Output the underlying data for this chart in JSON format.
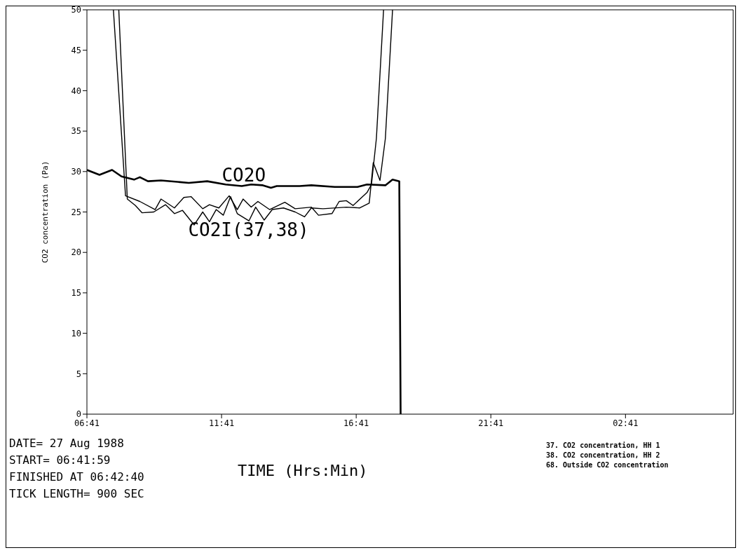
{
  "chart_data": {
    "type": "line",
    "xlabel": "TIME (Hrs:Min)",
    "ylabel": "CO2 concentration (Pa)",
    "xlim": [
      "1988-08-27T06:41",
      "1988-08-28T06:41"
    ],
    "xticks": [
      {
        "value": "1988-08-27T06:41",
        "label": "06:41"
      },
      {
        "value": "1988-08-27T11:41",
        "label": "11:41"
      },
      {
        "value": "1988-08-27T16:41",
        "label": "16:41"
      },
      {
        "value": "1988-08-27T21:41",
        "label": "21:41"
      },
      {
        "value": "1988-08-28T02:41",
        "label": "02:41"
      }
    ],
    "ylim": [
      0,
      50
    ],
    "yticks": [
      0,
      5,
      10,
      15,
      20,
      25,
      30,
      35,
      40,
      45,
      50
    ],
    "grid": false,
    "legend": false,
    "marker": "none",
    "line_style": "solid",
    "series": [
      {
        "name": "CO2O",
        "color": "#000000",
        "x": [
          "1988-08-27T06:41",
          "1988-08-27T07:09",
          "1988-08-27T07:37",
          "1988-08-27T07:58",
          "1988-08-27T08:26",
          "1988-08-27T08:39",
          "1988-08-27T08:57",
          "1988-08-27T09:26",
          "1988-08-27T10:28",
          "1988-08-27T11:09",
          "1988-08-27T11:50",
          "1988-08-27T12:26",
          "1988-08-27T12:47",
          "1988-08-27T13:13",
          "1988-08-27T13:31",
          "1988-08-27T13:44",
          "1988-08-27T14:35",
          "1988-08-27T15:01",
          "1988-08-27T15:53",
          "1988-08-27T16:44",
          "1988-08-27T17:05",
          "1988-08-27T17:46",
          "1988-08-27T18:02",
          "1988-08-27T18:17",
          "1988-08-27T18:20"
        ],
        "values": [
          30.2,
          29.6,
          30.2,
          29.4,
          29.0,
          29.3,
          28.8,
          28.9,
          28.6,
          28.8,
          28.4,
          28.2,
          28.4,
          28.3,
          28.0,
          28.2,
          28.2,
          28.3,
          28.1,
          28.1,
          28.4,
          28.3,
          29.0,
          28.8,
          0
        ]
      },
      {
        "name": "CO2I(37,38)",
        "color": "#000000",
        "x": [
          "1988-08-27T07:40",
          "1988-08-27T08:07",
          "1988-08-27T08:39",
          "1988-08-27T09:13",
          "1988-08-27T09:26",
          "1988-08-27T09:56",
          "1988-08-27T10:17",
          "1988-08-27T10:33",
          "1988-08-27T10:59",
          "1988-08-27T11:14",
          "1988-08-27T11:35",
          "1988-08-27T11:58",
          "1988-08-27T12:16",
          "1988-08-27T12:29",
          "1988-08-27T12:47",
          "1988-08-27T13:02",
          "1988-08-27T13:28",
          "1988-08-27T14:02",
          "1988-08-27T14:25",
          "1988-08-27T15:01",
          "1988-08-27T15:17",
          "1988-08-27T15:47",
          "1988-08-27T16:03",
          "1988-08-27T16:19",
          "1988-08-27T16:34",
          "1988-08-27T17:05",
          "1988-08-27T17:15",
          "1988-08-27T17:26",
          "1988-08-27T17:42"
        ],
        "values": [
          50,
          27.0,
          26.3,
          25.3,
          26.6,
          25.5,
          26.8,
          26.9,
          25.4,
          25.9,
          25.5,
          27.0,
          25.3,
          26.6,
          25.6,
          26.3,
          25.3,
          26.2,
          25.4,
          25.6,
          24.6,
          24.8,
          26.3,
          26.4,
          25.8,
          27.4,
          28.4,
          34.1,
          50
        ]
      },
      {
        "color": "#000000",
        "x": [
          "1988-08-27T07:52",
          "1988-08-27T08:11",
          "1988-08-27T08:29",
          "1988-08-27T08:44",
          "1988-08-27T09:10",
          "1988-08-27T09:36",
          "1988-08-27T09:56",
          "1988-08-27T10:14",
          "1988-08-27T10:40",
          "1988-08-27T10:59",
          "1988-08-27T11:14",
          "1988-08-27T11:29",
          "1988-08-27T11:45",
          "1988-08-27T12:01",
          "1988-08-27T12:16",
          "1988-08-27T12:42",
          "1988-08-27T12:57",
          "1988-08-27T13:16",
          "1988-08-27T13:34",
          "1988-08-27T13:59",
          "1988-08-27T14:25",
          "1988-08-27T14:46",
          "1988-08-27T15:01",
          "1988-08-27T15:27",
          "1988-08-27T16:19",
          "1988-08-27T16:49",
          "1988-08-27T17:10",
          "1988-08-27T17:19",
          "1988-08-27T17:34",
          "1988-08-27T17:46",
          "1988-08-27T18:02"
        ],
        "values": [
          50,
          26.6,
          25.8,
          24.9,
          25.0,
          25.9,
          24.8,
          25.2,
          23.4,
          25.0,
          23.8,
          25.3,
          24.6,
          26.9,
          24.8,
          23.9,
          25.6,
          24.0,
          25.3,
          25.5,
          25.0,
          24.4,
          25.5,
          25.4,
          25.6,
          25.5,
          26.1,
          31.1,
          28.9,
          34.1,
          50
        ]
      }
    ],
    "annotations": [
      "DATE= 27 Aug 1988",
      "START= 06:41:59",
      "FINISHED AT 06:42:40",
      "TICK LENGTH= 900 SEC",
      "37. CO2 concentration, HH 1",
      "38. CO2 concentration, HH 2",
      "68. Outside CO2 concentration"
    ]
  }
}
